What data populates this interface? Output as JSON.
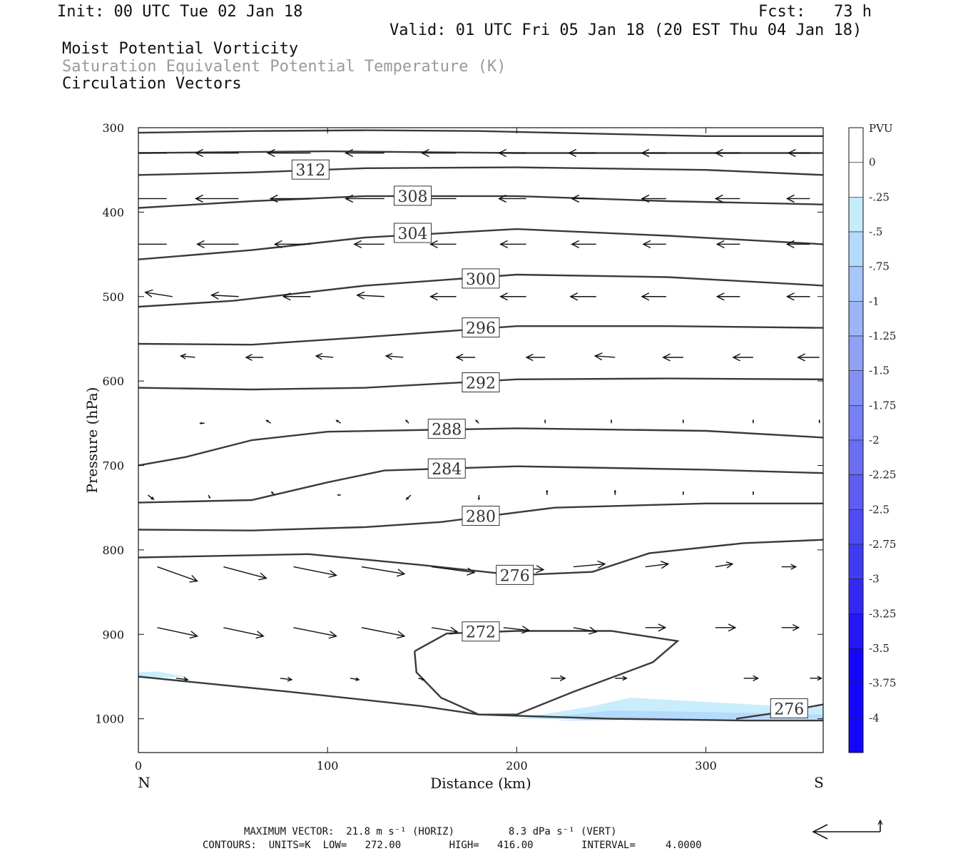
{
  "header": {
    "init": "Init: 00 UTC Tue 02 Jan 18",
    "fcst": "Fcst:   73 h",
    "valid": "Valid: 01 UTC Fri 05 Jan 18 (20 EST Thu 04 Jan 18)",
    "field1": "Moist Potential Vorticity",
    "field2": "Saturation Equivalent Potential Temperature (K)",
    "field3": "Circulation Vectors"
  },
  "footer": {
    "max_vector": "MAXIMUM VECTOR:  21.8 m s⁻¹ (HORIZ)         8.3 dPa s⁻¹ (VERT)",
    "contours": "CONTOURS:  UNITS=K  LOW=   272.00        HIGH=   416.00        INTERVAL=     4.0000"
  },
  "colors": {
    "contour": "#3a3a3a",
    "pv_scale": [
      "#ffffff",
      "#ffffff",
      "#c6ecfb",
      "#b3dafc",
      "#a6c5fa",
      "#9cb4f8",
      "#90a2f6",
      "#8391f4",
      "#7680f4",
      "#6a6ff2",
      "#5d5df2",
      "#4e4cf2",
      "#3f3cf3",
      "#322af4",
      "#2417f6",
      "#1306f8"
    ]
  },
  "chart_data": {
    "type": "cross-section",
    "xlabel": "Distance (km)",
    "ylabel": "Pressure (hPa)",
    "x_end_labels": {
      "left": "N",
      "right": "S"
    },
    "xlim": [
      0,
      362
    ],
    "ylim": [
      1040,
      300
    ],
    "x_ticks": [
      0,
      100,
      200,
      300
    ],
    "y_ticks": [
      300,
      400,
      500,
      600,
      700,
      800,
      900,
      1000
    ],
    "colorbar": {
      "title": "PVU",
      "levels": [
        "0",
        "-.25",
        "-.5",
        "-.75",
        "-1",
        "-1.25",
        "-1.5",
        "-1.75",
        "-2",
        "-2.25",
        "-2.5",
        "-2.75",
        "-3",
        "-3.25",
        "-3.5",
        "-3.75",
        "-4"
      ]
    },
    "contours": [
      {
        "value": "312",
        "label_at": [
          91,
          350
        ],
        "points": [
          [
            0,
            306
          ],
          [
            60,
            304
          ],
          [
            120,
            303
          ],
          [
            180,
            304
          ],
          [
            240,
            307
          ],
          [
            300,
            310
          ],
          [
            362,
            310
          ]
        ]
      },
      {
        "value": "312b",
        "label_at": null,
        "points": [
          [
            0,
            330
          ],
          [
            100,
            328
          ],
          [
            200,
            330
          ],
          [
            300,
            330
          ],
          [
            362,
            330
          ]
        ]
      },
      {
        "value": "312c",
        "label_at": null,
        "points": [
          [
            0,
            356
          ],
          [
            60,
            353
          ],
          [
            120,
            348
          ],
          [
            200,
            347
          ],
          [
            300,
            350
          ],
          [
            362,
            356
          ]
        ]
      },
      {
        "value": "308",
        "label_at": [
          145,
          381
        ],
        "points": [
          [
            0,
            395
          ],
          [
            60,
            387
          ],
          [
            120,
            381
          ],
          [
            200,
            381
          ],
          [
            280,
            387
          ],
          [
            362,
            391
          ]
        ]
      },
      {
        "value": "304",
        "label_at": [
          145,
          425
        ],
        "points": [
          [
            0,
            456
          ],
          [
            60,
            445
          ],
          [
            120,
            430
          ],
          [
            200,
            420
          ],
          [
            280,
            428
          ],
          [
            362,
            438
          ]
        ]
      },
      {
        "value": "300",
        "label_at": [
          181,
          479
        ],
        "points": [
          [
            0,
            512
          ],
          [
            50,
            505
          ],
          [
            120,
            487
          ],
          [
            200,
            474
          ],
          [
            280,
            477
          ],
          [
            362,
            487
          ]
        ]
      },
      {
        "value": "296",
        "label_at": [
          181,
          537
        ],
        "points": [
          [
            0,
            556
          ],
          [
            60,
            557
          ],
          [
            120,
            548
          ],
          [
            200,
            535
          ],
          [
            280,
            535
          ],
          [
            362,
            537
          ]
        ]
      },
      {
        "value": "292",
        "label_at": [
          181,
          602
        ],
        "points": [
          [
            0,
            608
          ],
          [
            60,
            610
          ],
          [
            120,
            608
          ],
          [
            200,
            598
          ],
          [
            280,
            597
          ],
          [
            362,
            598
          ]
        ]
      },
      {
        "value": "288",
        "label_at": [
          163,
          657
        ],
        "points": [
          [
            0,
            700
          ],
          [
            25,
            690
          ],
          [
            60,
            670
          ],
          [
            100,
            660
          ],
          [
            200,
            656
          ],
          [
            300,
            659
          ],
          [
            362,
            667
          ]
        ]
      },
      {
        "value": "284",
        "label_at": [
          163,
          704
        ],
        "points": [
          [
            0,
            744
          ],
          [
            60,
            741
          ],
          [
            100,
            720
          ],
          [
            130,
            706
          ],
          [
            200,
            701
          ],
          [
            300,
            705
          ],
          [
            362,
            709
          ]
        ]
      },
      {
        "value": "280",
        "label_at": [
          181,
          760
        ],
        "points": [
          [
            0,
            776
          ],
          [
            60,
            777
          ],
          [
            120,
            773
          ],
          [
            160,
            767
          ],
          [
            220,
            750
          ],
          [
            300,
            745
          ],
          [
            362,
            745
          ]
        ]
      },
      {
        "value": "276",
        "label_at": [
          199,
          830
        ],
        "points": [
          [
            0,
            809
          ],
          [
            90,
            805
          ],
          [
            150,
            818
          ],
          [
            200,
            830
          ],
          [
            240,
            826
          ],
          [
            270,
            804
          ],
          [
            320,
            792
          ],
          [
            362,
            788
          ]
        ]
      },
      {
        "value": "272",
        "label_at": [
          181,
          897
        ],
        "points": [
          [
            146,
            920
          ],
          [
            163,
            899
          ],
          [
            200,
            896
          ],
          [
            250,
            896
          ],
          [
            285,
            908
          ],
          [
            272,
            933
          ],
          [
            230,
            968
          ],
          [
            200,
            995
          ],
          [
            180,
            995
          ],
          [
            160,
            975
          ],
          [
            147,
            945
          ],
          [
            146,
            920
          ]
        ]
      },
      {
        "value": "276-bottom",
        "label_at": [
          344,
          988
        ],
        "points": [
          [
            0,
            950
          ],
          [
            80,
            968
          ],
          [
            150,
            985
          ],
          [
            180,
            995
          ],
          [
            250,
            1000
          ],
          [
            320,
            1002
          ],
          [
            362,
            1002
          ]
        ]
      },
      {
        "value": "276-right",
        "label_at": null,
        "points": [
          [
            316,
            1000
          ],
          [
            340,
            992
          ],
          [
            362,
            983
          ]
        ]
      }
    ],
    "pv_shading": [
      {
        "level": "-.25",
        "points": [
          [
            200,
            1000
          ],
          [
            240,
            985
          ],
          [
            260,
            975
          ],
          [
            300,
            980
          ],
          [
            340,
            985
          ],
          [
            362,
            985
          ],
          [
            362,
            1000
          ]
        ]
      },
      {
        "level": "-.5",
        "points": [
          [
            210,
            1000
          ],
          [
            250,
            990
          ],
          [
            300,
            992
          ],
          [
            362,
            995
          ],
          [
            362,
            1000
          ]
        ]
      },
      {
        "level": "-.75",
        "points": [
          [
            220,
            1002
          ],
          [
            260,
            998
          ],
          [
            300,
            1000
          ],
          [
            340,
            1000
          ]
        ]
      },
      {
        "level": "-.25b",
        "points": [
          [
            0,
            945
          ],
          [
            10,
            944
          ],
          [
            25,
            950
          ],
          [
            0,
            952
          ]
        ]
      }
    ],
    "vectors": [
      {
        "p": 330,
        "xs": [
          15,
          53,
          91,
          130,
          168,
          205,
          242,
          279,
          318,
          355
        ],
        "dx": [
          -30,
          -30,
          -30,
          -27,
          -24,
          -19,
          -19,
          -17,
          -17,
          -15
        ],
        "dy": [
          0,
          0,
          0,
          0,
          0,
          0,
          0,
          0,
          0,
          0
        ]
      },
      {
        "p": 384,
        "xs": [
          15,
          53,
          91,
          130,
          168,
          205,
          242,
          279,
          318,
          355
        ],
        "dx": [
          -30,
          -30,
          -28,
          -27,
          -25,
          -19,
          -17,
          -17,
          -17,
          -16
        ],
        "dy": [
          0,
          0,
          0,
          0,
          0,
          0,
          0,
          0,
          0,
          0
        ]
      },
      {
        "p": 438,
        "xs": [
          15,
          53,
          91,
          130,
          168,
          205,
          242,
          279,
          318,
          355
        ],
        "dx": [
          -32,
          -29,
          -25,
          -21,
          -18,
          -18,
          -17,
          -16,
          -16,
          -16
        ],
        "dy": [
          0,
          0,
          0,
          0,
          0,
          0,
          0,
          0,
          0,
          0
        ]
      },
      {
        "p": 500,
        "xs": [
          18,
          53,
          91,
          130,
          168,
          205,
          242,
          279,
          318,
          355
        ],
        "dx": [
          -19,
          -19,
          -19,
          -19,
          -18,
          -18,
          -18,
          -17,
          -16,
          -16
        ],
        "dy": [
          -3,
          -1,
          0,
          -1,
          0,
          0,
          0,
          0,
          0,
          0
        ]
      },
      {
        "p": 572,
        "xs": [
          30,
          66,
          103,
          140,
          178,
          215,
          252,
          288,
          325,
          360
        ],
        "dx": [
          -10,
          -12,
          -12,
          -12,
          -13,
          -13,
          -14,
          -14,
          -14,
          -15
        ],
        "dy": [
          -1,
          0,
          -1,
          -1,
          0,
          0,
          -1,
          0,
          0,
          0
        ]
      },
      {
        "p": 650,
        "xs": [
          35,
          70,
          107,
          143,
          180,
          215,
          250,
          288,
          325,
          360
        ],
        "dx": [
          -3,
          -3,
          -3,
          -2,
          -2,
          0,
          0,
          0,
          0,
          0
        ],
        "dy": [
          0,
          -2,
          -2,
          -2,
          -2,
          -2,
          -2,
          -2,
          -2,
          -2
        ]
      },
      {
        "p": 735,
        "xs": [
          5,
          37,
          72,
          107,
          144,
          180,
          216,
          252,
          288,
          325
        ],
        "dx": [
          4,
          1,
          -2,
          -2,
          -3,
          0,
          0,
          0,
          0,
          0
        ],
        "dy": [
          3,
          2,
          -2,
          0,
          3,
          3,
          -3,
          -3,
          -2,
          -2
        ]
      },
      {
        "p": 820,
        "xs": [
          10,
          45,
          82,
          118,
          155,
          193,
          230,
          268,
          305,
          340
        ],
        "dx": [
          28,
          30,
          30,
          30,
          30,
          28,
          22,
          16,
          12,
          10
        ],
        "dy": [
          10,
          8,
          6,
          5,
          4,
          2,
          -2,
          -2,
          -2,
          0
        ]
      },
      {
        "p": 892,
        "xs": [
          10,
          45,
          82,
          118,
          155,
          193,
          230,
          268,
          305,
          340
        ],
        "dx": [
          28,
          28,
          30,
          30,
          18,
          18,
          16,
          14,
          14,
          12
        ],
        "dy": [
          6,
          6,
          6,
          6,
          3,
          2,
          3,
          0,
          0,
          0
        ]
      },
      {
        "p": 952,
        "xs": [
          20,
          75,
          112,
          148,
          196,
          218,
          252,
          282,
          320,
          355
        ],
        "dx": [
          8,
          8,
          6,
          4,
          0,
          10,
          8,
          0,
          10,
          8
        ],
        "dy": [
          1,
          1,
          1,
          1,
          0,
          0,
          0,
          0,
          0,
          0
        ]
      }
    ]
  }
}
